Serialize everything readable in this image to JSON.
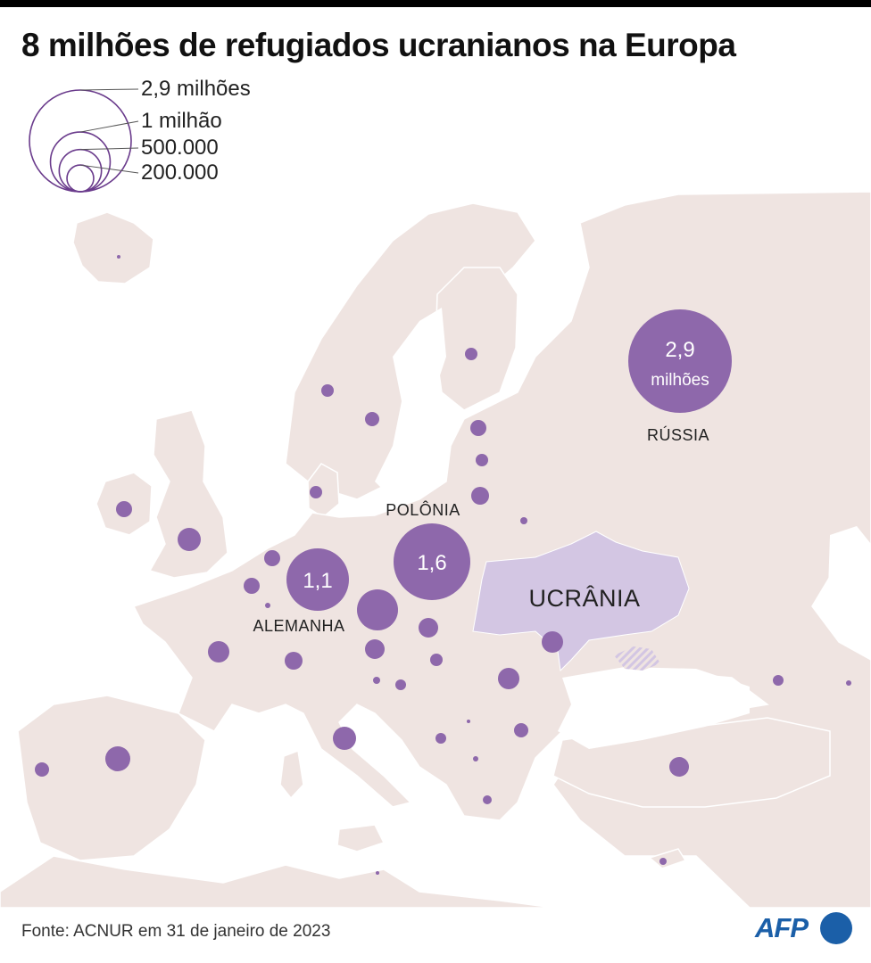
{
  "title": "8 milhões de refugiados ucranianos na Europa",
  "legend": {
    "items": [
      {
        "label": "2,9 milhões",
        "value": 2900000
      },
      {
        "label": "1 milhão",
        "value": 1000000
      },
      {
        "label": "500.000",
        "value": 500000
      },
      {
        "label": "200.000",
        "value": 200000
      }
    ]
  },
  "labels": {
    "ukraine": "UCRÂNIA",
    "russia": "RÚSSIA",
    "poland": "POLÔNIA",
    "germany": "ALEMANHA"
  },
  "bubbles_labeled": {
    "russia": {
      "value_line1": "2,9",
      "value_line2": "milhões",
      "value": 2900000
    },
    "poland": {
      "value_line1": "1,6",
      "value": 1600000
    },
    "germany": {
      "value_line1": "1,1",
      "value": 1100000
    }
  },
  "source": "Fonte: ACNUR em 31 de janeiro de 2023",
  "logo": "AFP",
  "colors": {
    "land": "#efe4e1",
    "sea": "#ffffff",
    "ukraine": "#d3c6e3",
    "bubble": "#8e68ab",
    "legend_circle": "#6a3b8c",
    "logo": "#1b5fa8"
  }
}
